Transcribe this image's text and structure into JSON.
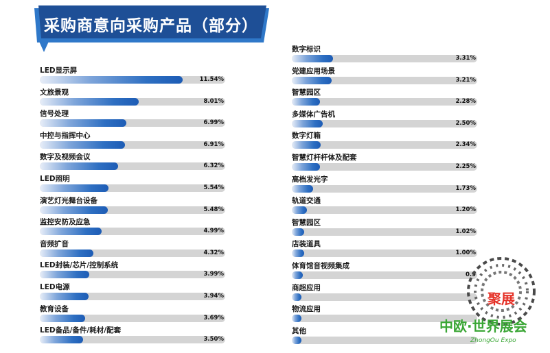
{
  "header": {
    "title": "采购商意向采购产品（部分）"
  },
  "colors": {
    "banner": "#1e4f96",
    "banner_trim": "#2f78c9",
    "bar_fill": "#2e6fc2",
    "bar_track": "#d4d4d4",
    "logo_red": "#e53228",
    "logo_green": "#3aa635"
  },
  "chart_data": {
    "type": "bar",
    "orientation": "horizontal",
    "title": "采购商意向采购产品（部分）",
    "xlim": [
      0,
      15
    ],
    "columns": [
      {
        "categories": [
          "LED显示屏",
          "文旅景观",
          "信号处理",
          "中控与指挥中心",
          "数字及视频会议",
          "LED照明",
          "演艺灯光舞台设备",
          "监控安防及应急",
          "音频扩音",
          "LED封装/芯片/控制系统",
          "LED电源",
          "教育设备",
          "LED备品/备件/耗材/配套"
        ],
        "values": [
          11.54,
          8.01,
          6.99,
          6.91,
          6.32,
          5.54,
          5.48,
          4.99,
          4.32,
          3.99,
          3.94,
          3.69,
          3.5
        ],
        "labels": [
          "11.54%",
          "8.01%",
          "6.99%",
          "6.91%",
          "6.32%",
          "5.54%",
          "5.48%",
          "4.99%",
          "4.32%",
          "3.99%",
          "3.94%",
          "3.69%",
          "3.50%"
        ]
      },
      {
        "categories": [
          "数字标识",
          "党建应用场景",
          "智慧园区",
          "多媒体广告机",
          "数字灯箱",
          "智慧灯杆杆体及配套",
          "高档发光字",
          "轨道交通",
          "智慧园区",
          "店装道具",
          "体育馆音视频集成",
          "商超应用",
          "物流应用",
          "其他"
        ],
        "values": [
          3.31,
          3.21,
          2.28,
          2.5,
          2.34,
          2.25,
          1.73,
          1.2,
          1.02,
          1.0,
          0.9,
          0.8,
          0.7,
          0.6
        ],
        "labels": [
          "3.31%",
          "3.21%",
          "2.28%",
          "2.50%",
          "2.34%",
          "2.25%",
          "1.73%",
          "1.20%",
          "1.02%",
          "1.00%",
          "0.9",
          "",
          "",
          ""
        ]
      }
    ]
  },
  "watermark": {
    "text": "聚展",
    "name_cn": "中欧·世界展会",
    "name_en": "ZhongOu Expo"
  }
}
